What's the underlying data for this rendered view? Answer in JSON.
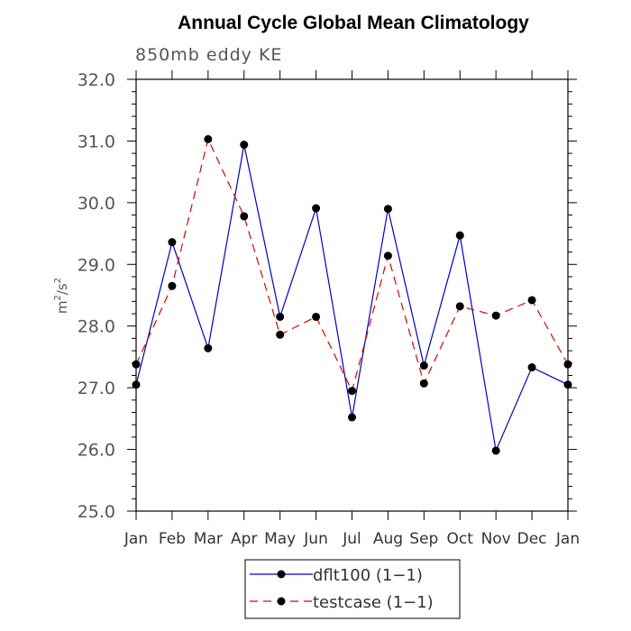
{
  "chart_data": {
    "type": "line",
    "title": "Annual Cycle Global Mean Climatology",
    "subtitle": "850mb eddy KE",
    "ylabel_base": "m",
    "ylabel_sup1": "2",
    "ylabel_mid": "/s",
    "ylabel_sup2": "2",
    "xlabel": "",
    "categories": [
      "Jan",
      "Feb",
      "Mar",
      "Apr",
      "May",
      "Jun",
      "Jul",
      "Aug",
      "Sep",
      "Oct",
      "Nov",
      "Dec",
      "Jan"
    ],
    "ylim": [
      25.0,
      32.0
    ],
    "yticks": [
      "25.0",
      "26.0",
      "27.0",
      "28.0",
      "29.0",
      "30.0",
      "31.0",
      "32.0"
    ],
    "series": [
      {
        "name": "dflt100 (1−1)",
        "color": "#0000cc",
        "dash": "solid",
        "values": [
          27.05,
          29.36,
          27.64,
          30.94,
          28.15,
          29.91,
          26.52,
          29.9,
          27.36,
          29.47,
          25.98,
          27.33,
          27.05
        ]
      },
      {
        "name": "testcase (1−1)",
        "color": "#e00000",
        "dash": "dashed",
        "values": [
          27.38,
          28.65,
          31.03,
          29.78,
          27.86,
          28.15,
          26.95,
          29.14,
          27.07,
          28.32,
          28.17,
          28.42,
          27.38
        ]
      }
    ],
    "legend_position": "bottom-center",
    "grid": false
  }
}
